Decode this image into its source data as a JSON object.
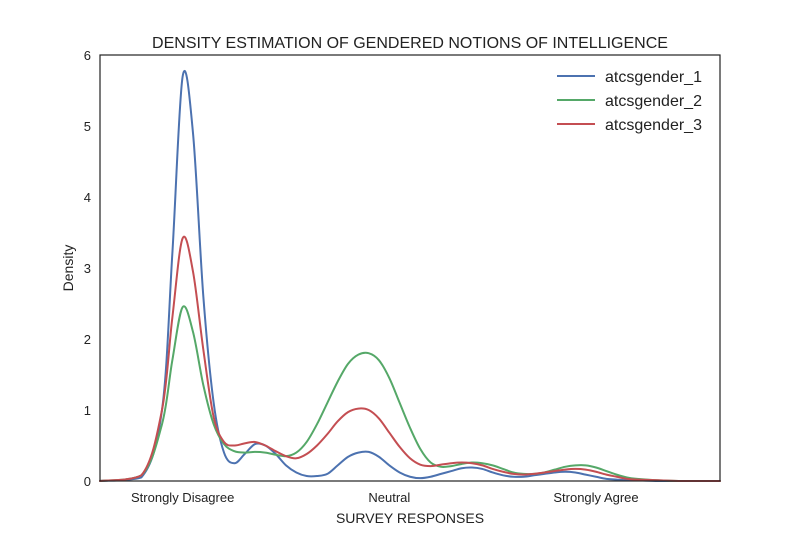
{
  "chart_data": {
    "type": "line",
    "title": "DENSITY ESTIMATION OF GENDERED NOTIONS OF INTELLIGENCE",
    "xlabel": "SURVEY RESPONSES",
    "ylabel": "Density",
    "xlim": [
      -0.4,
      2.6
    ],
    "ylim": [
      0,
      6
    ],
    "x_ticks": [
      {
        "value": 0,
        "label": "Strongly Disagree"
      },
      {
        "value": 1,
        "label": "Neutral"
      },
      {
        "value": 2,
        "label": "Strongly Agree"
      }
    ],
    "y_ticks": [
      0,
      1,
      2,
      3,
      4,
      5,
      6
    ],
    "grid": false,
    "legend": "top-right",
    "series": [
      {
        "name": "atcsgender_1",
        "color": "#4c72b0",
        "x": [
          -0.4,
          -0.2,
          -0.1,
          -0.05,
          0.0,
          0.05,
          0.1,
          0.15,
          0.2,
          0.25,
          0.3,
          0.35,
          0.4,
          0.45,
          0.5,
          0.55,
          0.6,
          0.65,
          0.7,
          0.75,
          0.8,
          0.85,
          0.9,
          0.95,
          1.0,
          1.05,
          1.1,
          1.15,
          1.2,
          1.25,
          1.3,
          1.35,
          1.4,
          1.45,
          1.5,
          1.55,
          1.6,
          1.65,
          1.7,
          1.75,
          1.8,
          1.85,
          1.9,
          1.95,
          2.0,
          2.05,
          2.1,
          2.15,
          2.2,
          2.3,
          2.4,
          2.6
        ],
        "y": [
          0,
          0.05,
          1.0,
          3.2,
          5.7,
          4.9,
          2.6,
          1.1,
          0.4,
          0.25,
          0.38,
          0.52,
          0.5,
          0.38,
          0.22,
          0.12,
          0.07,
          0.07,
          0.1,
          0.22,
          0.34,
          0.4,
          0.41,
          0.34,
          0.22,
          0.12,
          0.06,
          0.04,
          0.06,
          0.1,
          0.14,
          0.18,
          0.19,
          0.17,
          0.12,
          0.08,
          0.06,
          0.06,
          0.08,
          0.1,
          0.12,
          0.13,
          0.12,
          0.09,
          0.06,
          0.03,
          0.02,
          0.01,
          0.01,
          0,
          0,
          0
        ]
      },
      {
        "name": "atcsgender_2",
        "color": "#55a868",
        "x": [
          -0.4,
          -0.2,
          -0.1,
          -0.05,
          0.0,
          0.05,
          0.1,
          0.15,
          0.2,
          0.25,
          0.3,
          0.35,
          0.4,
          0.45,
          0.5,
          0.55,
          0.6,
          0.65,
          0.7,
          0.75,
          0.8,
          0.85,
          0.9,
          0.95,
          1.0,
          1.05,
          1.1,
          1.15,
          1.2,
          1.25,
          1.3,
          1.35,
          1.4,
          1.45,
          1.5,
          1.55,
          1.6,
          1.65,
          1.7,
          1.75,
          1.8,
          1.85,
          1.9,
          1.95,
          2.0,
          2.05,
          2.1,
          2.15,
          2.2,
          2.3,
          2.4,
          2.6
        ],
        "y": [
          0,
          0.08,
          0.8,
          1.7,
          2.45,
          2.1,
          1.35,
          0.8,
          0.52,
          0.42,
          0.4,
          0.41,
          0.4,
          0.37,
          0.35,
          0.4,
          0.55,
          0.8,
          1.1,
          1.4,
          1.65,
          1.78,
          1.8,
          1.7,
          1.45,
          1.1,
          0.75,
          0.45,
          0.26,
          0.2,
          0.21,
          0.24,
          0.26,
          0.25,
          0.22,
          0.17,
          0.12,
          0.1,
          0.1,
          0.12,
          0.16,
          0.2,
          0.22,
          0.22,
          0.19,
          0.14,
          0.09,
          0.05,
          0.03,
          0.01,
          0,
          0
        ]
      },
      {
        "name": "atcsgender_3",
        "color": "#c44e52",
        "x": [
          -0.4,
          -0.2,
          -0.1,
          -0.05,
          0.0,
          0.05,
          0.1,
          0.15,
          0.2,
          0.25,
          0.3,
          0.35,
          0.4,
          0.45,
          0.5,
          0.55,
          0.6,
          0.65,
          0.7,
          0.75,
          0.8,
          0.85,
          0.9,
          0.95,
          1.0,
          1.05,
          1.1,
          1.15,
          1.2,
          1.25,
          1.3,
          1.35,
          1.4,
          1.45,
          1.5,
          1.55,
          1.6,
          1.65,
          1.7,
          1.75,
          1.8,
          1.85,
          1.9,
          1.95,
          2.0,
          2.05,
          2.1,
          2.15,
          2.2,
          2.3,
          2.4,
          2.6
        ],
        "y": [
          0,
          0.08,
          1.0,
          2.3,
          3.42,
          2.95,
          1.85,
          0.9,
          0.55,
          0.5,
          0.53,
          0.55,
          0.5,
          0.42,
          0.35,
          0.32,
          0.38,
          0.5,
          0.66,
          0.84,
          0.97,
          1.02,
          1.0,
          0.88,
          0.68,
          0.48,
          0.32,
          0.23,
          0.21,
          0.23,
          0.25,
          0.26,
          0.25,
          0.22,
          0.17,
          0.13,
          0.1,
          0.09,
          0.1,
          0.12,
          0.14,
          0.16,
          0.17,
          0.16,
          0.13,
          0.09,
          0.06,
          0.03,
          0.02,
          0.01,
          0,
          0
        ]
      }
    ]
  }
}
